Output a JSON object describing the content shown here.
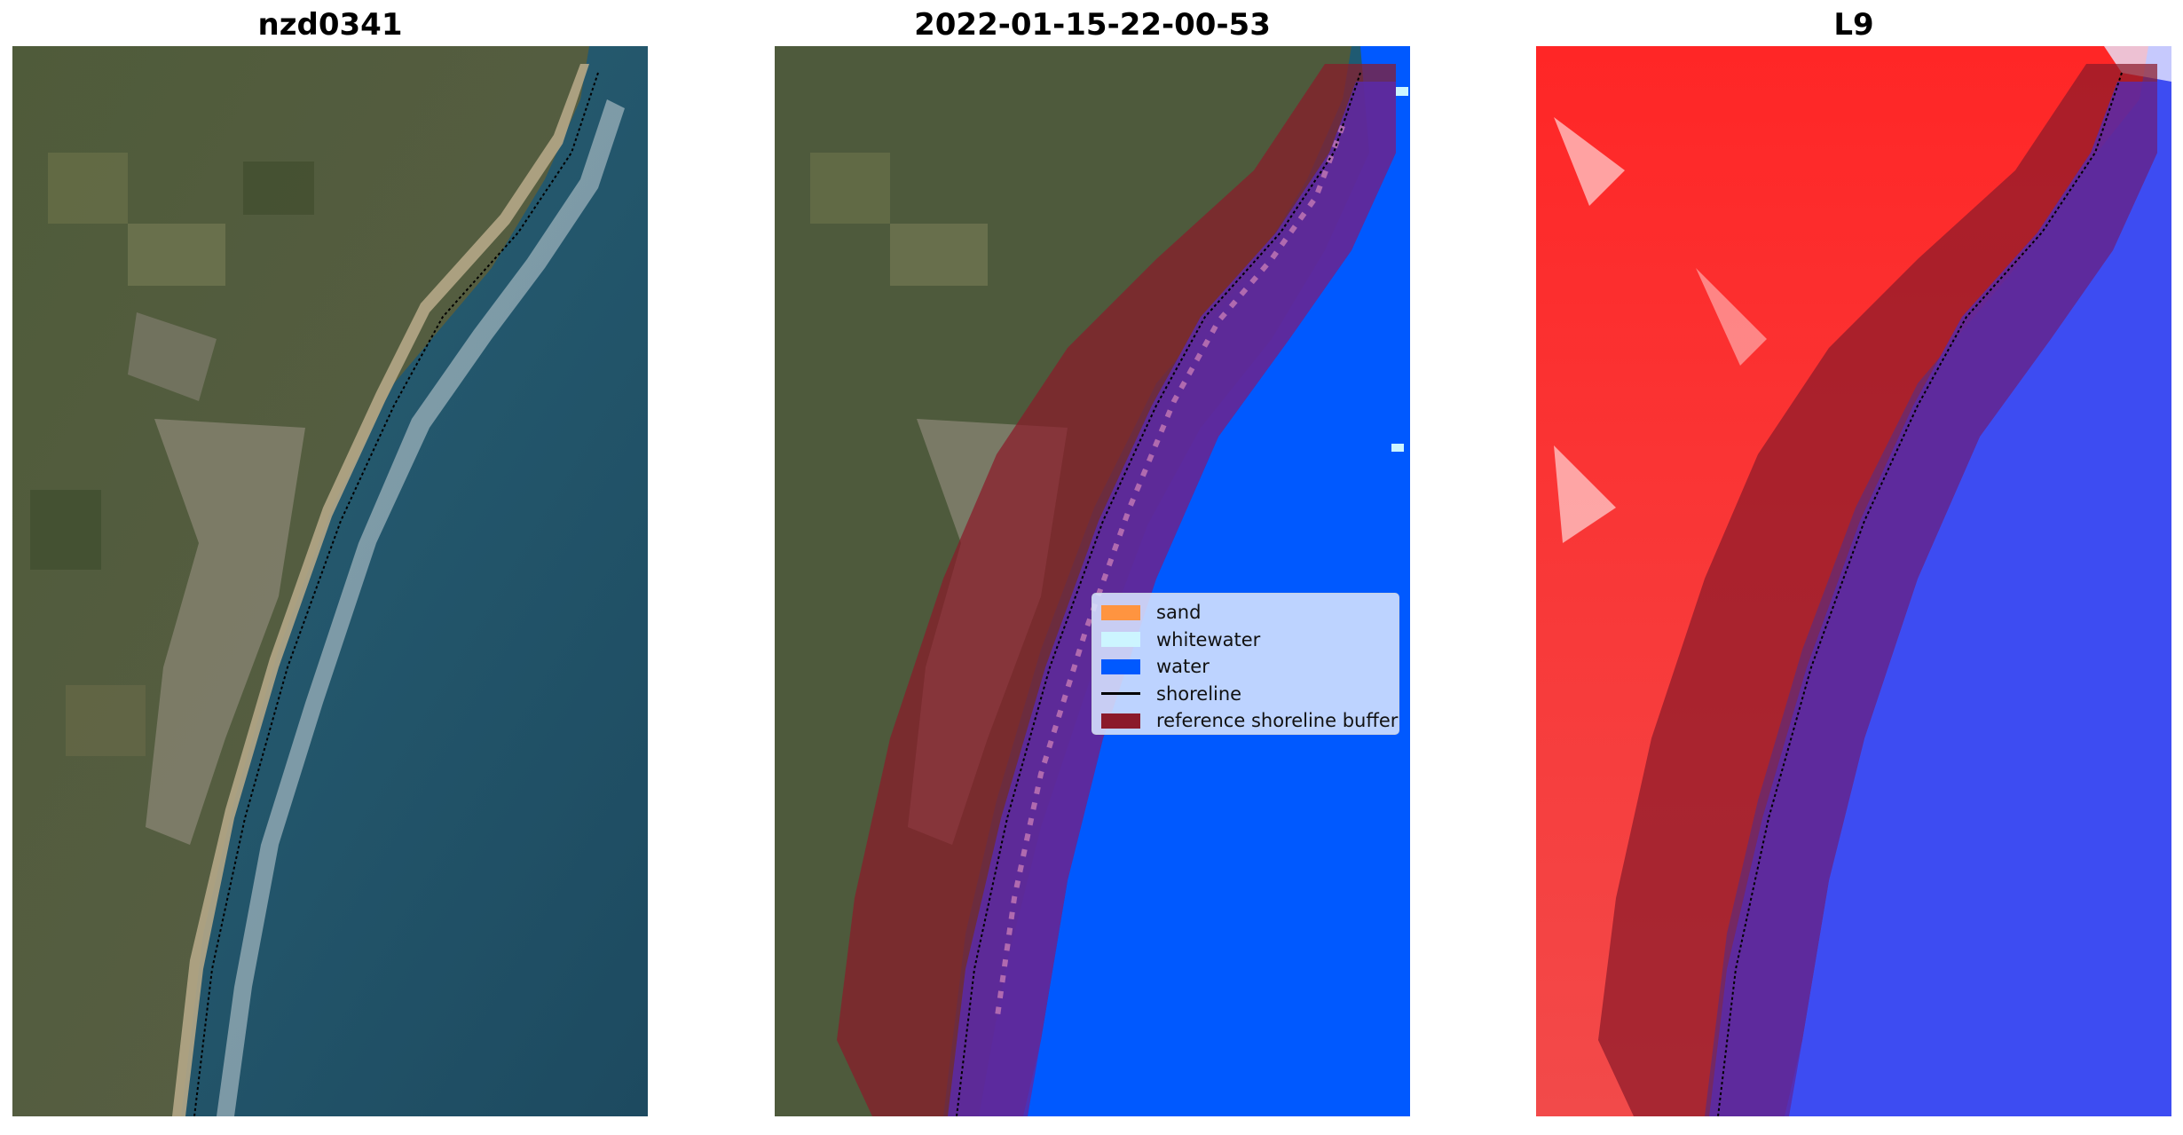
{
  "panels": [
    {
      "title": "nzd0341"
    },
    {
      "title": "2022-01-15-22-00-53"
    },
    {
      "title": "L9"
    }
  ],
  "legend": {
    "items": [
      {
        "label": "sand",
        "color": "#ff9440",
        "kind": "patch"
      },
      {
        "label": "whitewater",
        "color": "#ccf5ff",
        "kind": "patch"
      },
      {
        "label": "water",
        "color": "#0059ff",
        "kind": "patch"
      },
      {
        "label": "shoreline",
        "color": "#000000",
        "kind": "line"
      },
      {
        "label": "reference shoreline buffer",
        "color": "#8b1a2a",
        "kind": "patch"
      }
    ]
  },
  "colors": {
    "ocean": "#1f5a72",
    "land": "#4e5a3c",
    "classified_water": "#0059ff",
    "buffer": "#8b1a2a",
    "index_land": "#ff2a2a",
    "index_water": "#3d4cf2"
  }
}
